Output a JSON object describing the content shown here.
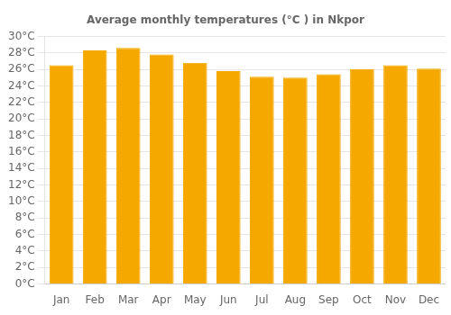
{
  "chart_data": {
    "type": "bar",
    "title": "Average monthly temperatures (°C ) in Nkpor",
    "categories": [
      "Jan",
      "Feb",
      "Mar",
      "Apr",
      "May",
      "Jun",
      "Jul",
      "Aug",
      "Sep",
      "Oct",
      "Nov",
      "Dec"
    ],
    "values": [
      26.5,
      28.3,
      28.6,
      27.8,
      26.8,
      25.8,
      25.1,
      25.0,
      25.4,
      26.0,
      26.5,
      26.1
    ],
    "color": "#F5A800",
    "ylim": [
      0,
      30
    ],
    "yticks": [
      {
        "value": 0,
        "label": "0°C"
      },
      {
        "value": 2,
        "label": "2°C"
      },
      {
        "value": 4,
        "label": "4°C"
      },
      {
        "value": 6,
        "label": "6°C"
      },
      {
        "value": 8,
        "label": "8°C"
      },
      {
        "value": 10,
        "label": "10°C"
      },
      {
        "value": 12,
        "label": "12°C"
      },
      {
        "value": 14,
        "label": "14°C"
      },
      {
        "value": 16,
        "label": "16°C"
      },
      {
        "value": 18,
        "label": "18°C"
      },
      {
        "value": 20,
        "label": "20°C"
      },
      {
        "value": 22,
        "label": "22°C"
      },
      {
        "value": 24,
        "label": "24°C"
      },
      {
        "value": 26,
        "label": "26°C"
      },
      {
        "value": 28,
        "label": "28°C"
      },
      {
        "value": 30,
        "label": "30°C"
      }
    ],
    "grid": true
  }
}
